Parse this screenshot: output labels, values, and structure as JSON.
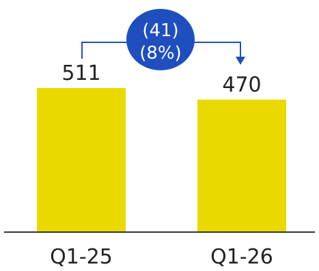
{
  "chart_data": {
    "type": "bar",
    "categories": [
      "Q1-25",
      "Q1-26"
    ],
    "values": [
      511,
      470
    ],
    "value_labels": [
      "511",
      "470"
    ],
    "ylim": [
      0,
      560
    ],
    "title": "",
    "xlabel": "",
    "ylabel": "",
    "grid": false,
    "legend": "none",
    "colors": {
      "bar": "#EAD900",
      "bubble": "#1F4FBF",
      "bubble_text": "#FFFFFF",
      "connector": "#1F4FBF",
      "axis": "#333333",
      "text": "#222222"
    },
    "change": {
      "absolute_label": "(41)",
      "percent_label": "(8%)"
    }
  }
}
